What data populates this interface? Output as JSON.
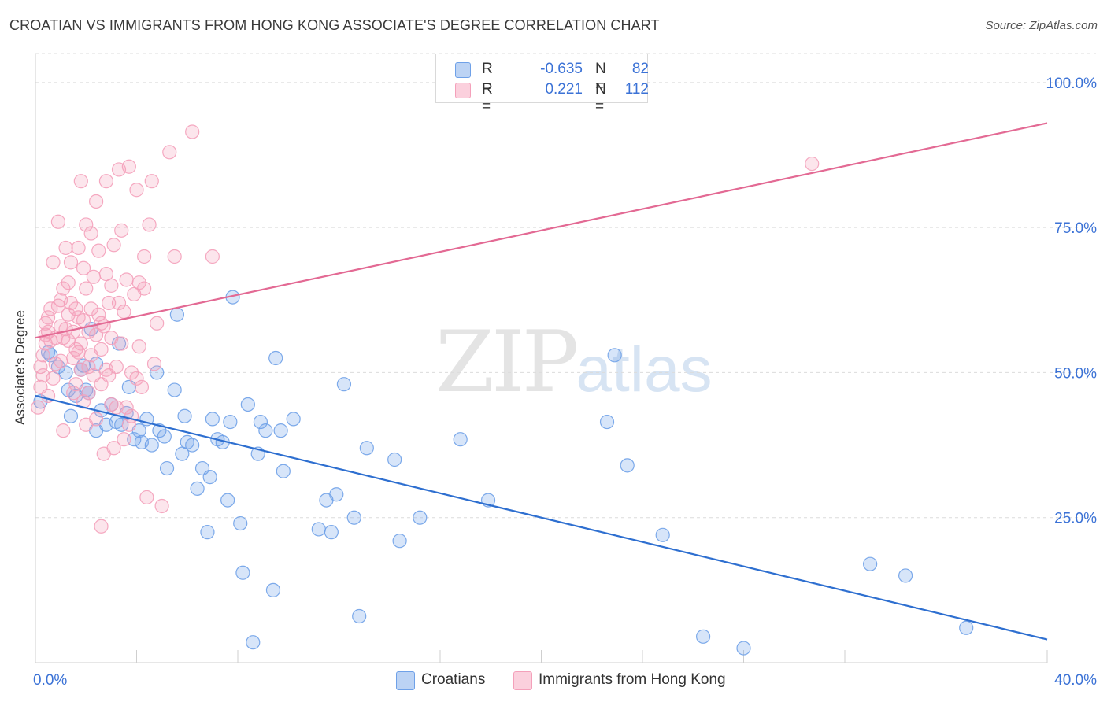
{
  "chart_data": {
    "type": "scatter",
    "title": "CROATIAN VS IMMIGRANTS FROM HONG KONG ASSOCIATE'S DEGREE CORRELATION CHART",
    "source": "Source: ZipAtlas.com",
    "xlabel": "",
    "ylabel": "Associate's Degree",
    "xlim": [
      0,
      40
    ],
    "ylim": [
      0,
      105
    ],
    "x_tick_labels": [
      "0.0%",
      "40.0%"
    ],
    "y_ticks": [
      25,
      50,
      75,
      100
    ],
    "y_tick_labels": [
      "25.0%",
      "50.0%",
      "75.0%",
      "100.0%"
    ],
    "grid": true,
    "legend_position": "top-center",
    "watermark": {
      "zip": "ZIP",
      "atlas": "atlas"
    },
    "series": [
      {
        "name": "Croatians",
        "color": "#6fa1e8",
        "line_color": "#2e6fd0",
        "R": "-0.635",
        "N": "82",
        "trend": {
          "x0": 0,
          "y0": 46.0,
          "x1": 40,
          "y1": 4.0
        },
        "points": [
          [
            0.2,
            45.0
          ],
          [
            0.5,
            53.5
          ],
          [
            0.6,
            53.0
          ],
          [
            0.9,
            51.0
          ],
          [
            1.3,
            47.0
          ],
          [
            1.4,
            42.5
          ],
          [
            1.6,
            46.0
          ],
          [
            1.8,
            50.5
          ],
          [
            1.9,
            51.2
          ],
          [
            2.1,
            46.5
          ],
          [
            2.2,
            57.5
          ],
          [
            2.4,
            51.5
          ],
          [
            2.4,
            40.0
          ],
          [
            2.6,
            43.5
          ],
          [
            2.8,
            41.0
          ],
          [
            3.0,
            44.5
          ],
          [
            3.2,
            41.5
          ],
          [
            3.3,
            55.0
          ],
          [
            3.4,
            41.0
          ],
          [
            3.7,
            47.5
          ],
          [
            3.9,
            38.5
          ],
          [
            4.1,
            40.0
          ],
          [
            4.2,
            38.0
          ],
          [
            4.4,
            42.0
          ],
          [
            4.6,
            37.5
          ],
          [
            4.8,
            50.0
          ],
          [
            4.9,
            40.0
          ],
          [
            5.1,
            39.0
          ],
          [
            5.2,
            33.5
          ],
          [
            5.5,
            47.0
          ],
          [
            5.6,
            60.0
          ],
          [
            5.8,
            36.0
          ],
          [
            5.9,
            42.5
          ],
          [
            6.0,
            38.0
          ],
          [
            6.2,
            37.5
          ],
          [
            6.4,
            30.0
          ],
          [
            6.6,
            33.5
          ],
          [
            6.9,
            32.0
          ],
          [
            7.0,
            42.0
          ],
          [
            7.2,
            38.5
          ],
          [
            7.4,
            38.0
          ],
          [
            7.6,
            28.0
          ],
          [
            7.7,
            41.5
          ],
          [
            7.8,
            63.0
          ],
          [
            6.8,
            22.5
          ],
          [
            8.1,
            24.0
          ],
          [
            8.2,
            15.5
          ],
          [
            8.4,
            44.5
          ],
          [
            8.6,
            3.5
          ],
          [
            8.8,
            36.0
          ],
          [
            8.9,
            41.5
          ],
          [
            9.1,
            40.0
          ],
          [
            9.4,
            12.5
          ],
          [
            9.5,
            52.5
          ],
          [
            9.7,
            40.0
          ],
          [
            9.8,
            33.0
          ],
          [
            10.2,
            42.0
          ],
          [
            11.2,
            23.0
          ],
          [
            11.5,
            28.0
          ],
          [
            11.7,
            22.5
          ],
          [
            11.9,
            29.0
          ],
          [
            12.2,
            48.0
          ],
          [
            12.6,
            25.0
          ],
          [
            12.8,
            8.0
          ],
          [
            13.1,
            37.0
          ],
          [
            14.2,
            35.0
          ],
          [
            14.4,
            21.0
          ],
          [
            15.2,
            25.0
          ],
          [
            16.8,
            38.5
          ],
          [
            17.9,
            28.0
          ],
          [
            22.6,
            41.5
          ],
          [
            22.9,
            53.0
          ],
          [
            23.4,
            34.0
          ],
          [
            24.8,
            22.0
          ],
          [
            26.4,
            4.5
          ],
          [
            28.0,
            2.5
          ],
          [
            33.0,
            17.0
          ],
          [
            34.4,
            15.0
          ],
          [
            36.8,
            6.0
          ],
          [
            2.0,
            47.0
          ],
          [
            1.2,
            50.0
          ],
          [
            3.6,
            43.0
          ]
        ]
      },
      {
        "name": "Immigrants from Hong Kong",
        "color": "#f4a0ba",
        "line_color": "#e36a94",
        "R": "0.221",
        "N": "112",
        "trend": {
          "x0": 0,
          "y0": 56.0,
          "x1": 40,
          "y1": 93.0
        },
        "points": [
          [
            0.1,
            44.0
          ],
          [
            0.2,
            47.5
          ],
          [
            0.3,
            49.5
          ],
          [
            0.3,
            53.0
          ],
          [
            0.4,
            55.0
          ],
          [
            0.4,
            56.5
          ],
          [
            0.5,
            57.0
          ],
          [
            0.5,
            59.5
          ],
          [
            0.6,
            61.0
          ],
          [
            0.6,
            55.5
          ],
          [
            0.7,
            69.0
          ],
          [
            0.8,
            51.5
          ],
          [
            0.8,
            56.0
          ],
          [
            0.9,
            61.5
          ],
          [
            0.9,
            76.0
          ],
          [
            1.0,
            52.0
          ],
          [
            1.0,
            58.0
          ],
          [
            1.1,
            40.0
          ],
          [
            1.1,
            64.5
          ],
          [
            1.2,
            57.5
          ],
          [
            1.2,
            71.5
          ],
          [
            1.3,
            55.5
          ],
          [
            1.3,
            60.0
          ],
          [
            1.4,
            62.0
          ],
          [
            1.4,
            69.0
          ],
          [
            1.5,
            52.5
          ],
          [
            1.5,
            57.0
          ],
          [
            1.6,
            48.0
          ],
          [
            1.6,
            54.0
          ],
          [
            1.6,
            61.0
          ],
          [
            1.7,
            59.5
          ],
          [
            1.7,
            71.5
          ],
          [
            1.8,
            50.5
          ],
          [
            1.8,
            55.0
          ],
          [
            1.8,
            83.0
          ],
          [
            1.9,
            59.0
          ],
          [
            1.9,
            68.0
          ],
          [
            2.0,
            64.5
          ],
          [
            2.0,
            75.5
          ],
          [
            2.1,
            51.0
          ],
          [
            2.1,
            57.0
          ],
          [
            2.1,
            46.5
          ],
          [
            2.2,
            61.0
          ],
          [
            2.2,
            74.0
          ],
          [
            2.3,
            49.5
          ],
          [
            2.3,
            66.5
          ],
          [
            2.4,
            56.5
          ],
          [
            2.4,
            79.5
          ],
          [
            2.5,
            60.0
          ],
          [
            2.5,
            71.0
          ],
          [
            2.6,
            48.0
          ],
          [
            2.6,
            54.0
          ],
          [
            2.6,
            23.5
          ],
          [
            2.7,
            58.0
          ],
          [
            2.7,
            36.0
          ],
          [
            2.8,
            67.0
          ],
          [
            2.8,
            83.0
          ],
          [
            2.9,
            49.5
          ],
          [
            2.9,
            62.0
          ],
          [
            3.0,
            65.0
          ],
          [
            3.0,
            44.5
          ],
          [
            3.1,
            37.0
          ],
          [
            3.1,
            72.0
          ],
          [
            3.2,
            51.0
          ],
          [
            3.3,
            62.0
          ],
          [
            3.3,
            85.0
          ],
          [
            3.4,
            55.0
          ],
          [
            3.4,
            74.5
          ],
          [
            3.5,
            60.5
          ],
          [
            3.6,
            44.0
          ],
          [
            3.6,
            66.0
          ],
          [
            3.7,
            85.5
          ],
          [
            3.8,
            42.5
          ],
          [
            3.8,
            50.0
          ],
          [
            3.9,
            63.5
          ],
          [
            4.0,
            81.5
          ],
          [
            4.1,
            54.5
          ],
          [
            4.1,
            65.5
          ],
          [
            4.2,
            47.5
          ],
          [
            4.3,
            70.0
          ],
          [
            4.4,
            28.5
          ],
          [
            4.5,
            75.5
          ],
          [
            4.6,
            83.0
          ],
          [
            4.7,
            51.5
          ],
          [
            4.8,
            58.5
          ],
          [
            5.0,
            27.0
          ],
          [
            5.3,
            88.0
          ],
          [
            5.5,
            70.0
          ],
          [
            6.2,
            91.5
          ],
          [
            7.0,
            70.0
          ],
          [
            30.7,
            86.0
          ],
          [
            0.2,
            51.0
          ],
          [
            0.5,
            46.0
          ],
          [
            0.7,
            49.0
          ],
          [
            1.0,
            62.5
          ],
          [
            1.3,
            65.5
          ],
          [
            1.5,
            46.5
          ],
          [
            1.9,
            45.0
          ],
          [
            2.2,
            53.0
          ],
          [
            2.4,
            42.0
          ],
          [
            2.6,
            58.5
          ],
          [
            2.8,
            50.5
          ],
          [
            3.0,
            56.0
          ],
          [
            3.2,
            44.0
          ],
          [
            3.5,
            38.5
          ],
          [
            3.7,
            41.0
          ],
          [
            4.0,
            49.0
          ],
          [
            4.3,
            64.5
          ],
          [
            1.1,
            56.0
          ],
          [
            1.7,
            53.5
          ],
          [
            2.0,
            41.0
          ],
          [
            0.4,
            58.5
          ]
        ]
      }
    ]
  }
}
